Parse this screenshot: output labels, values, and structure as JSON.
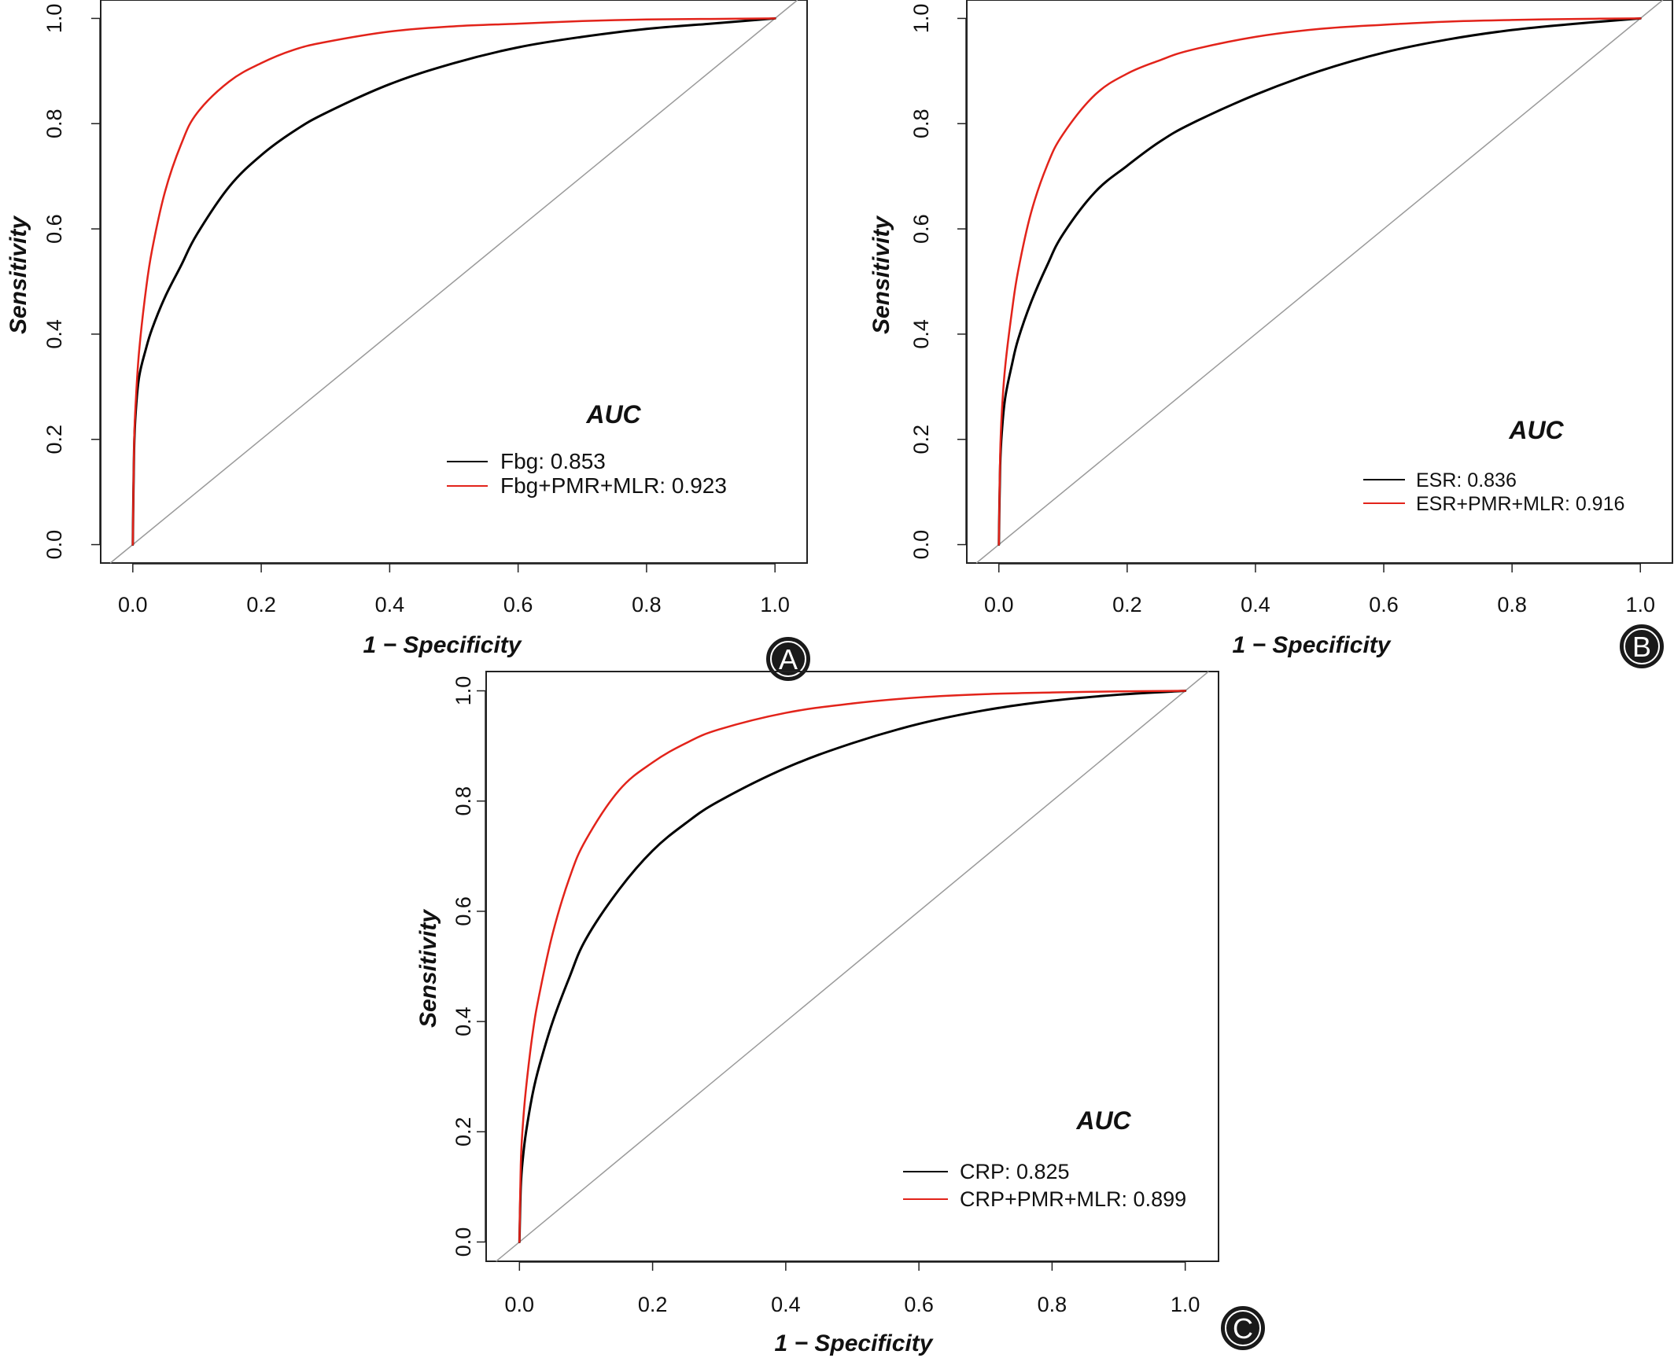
{
  "colors": {
    "reference_line": "#9a9a9a",
    "axis": "#222222",
    "badge_fill": "#1a1a1a",
    "badge_ring": "#ffffff",
    "badge_outline": "#1a1a1a"
  },
  "chart_data": [
    {
      "type": "line",
      "panel_label": "A",
      "xlabel": "1 − Specificity",
      "ylabel": "Sensitivity",
      "xlim": [
        -0.05,
        1.05
      ],
      "ylim": [
        -0.035,
        1.035
      ],
      "xticks": [
        0.0,
        0.2,
        0.4,
        0.6,
        0.8,
        1.0
      ],
      "yticks": [
        0.0,
        0.2,
        0.4,
        0.6,
        0.8,
        1.0
      ],
      "xtick_labels": [
        "0.0",
        "0.2",
        "0.4",
        "0.6",
        "0.8",
        "1.0"
      ],
      "ytick_labels": [
        "0.0",
        "0.2",
        "0.4",
        "0.6",
        "0.8",
        "1.0"
      ],
      "grid": false,
      "reference_line": "diagonal",
      "legend_title": "AUC",
      "legend_position": "bottom-right",
      "series": [
        {
          "name": "Fbg: 0.853",
          "color": "#000000",
          "x": [
            0,
            0.002,
            0.005,
            0.01,
            0.02,
            0.03,
            0.05,
            0.075,
            0.1,
            0.15,
            0.2,
            0.25,
            0.3,
            0.4,
            0.5,
            0.6,
            0.7,
            0.8,
            0.9,
            1.0
          ],
          "y": [
            0,
            0.18,
            0.26,
            0.32,
            0.37,
            0.41,
            0.47,
            0.53,
            0.59,
            0.68,
            0.74,
            0.785,
            0.82,
            0.875,
            0.915,
            0.945,
            0.965,
            0.98,
            0.99,
            1.0
          ]
        },
        {
          "name": "Fbg+PMR+MLR: 0.923",
          "color": "#e2231a",
          "x": [
            0,
            0.002,
            0.005,
            0.01,
            0.02,
            0.03,
            0.05,
            0.075,
            0.1,
            0.15,
            0.2,
            0.25,
            0.3,
            0.4,
            0.5,
            0.6,
            0.7,
            0.8,
            0.9,
            1.0
          ],
          "y": [
            0,
            0.19,
            0.28,
            0.37,
            0.48,
            0.56,
            0.67,
            0.76,
            0.82,
            0.88,
            0.915,
            0.94,
            0.955,
            0.975,
            0.985,
            0.99,
            0.995,
            0.998,
            0.999,
            1.0
          ]
        }
      ]
    },
    {
      "type": "line",
      "panel_label": "B",
      "xlabel": "1 − Specificity",
      "ylabel": "Sensitivity",
      "xlim": [
        -0.05,
        1.05
      ],
      "ylim": [
        -0.035,
        1.035
      ],
      "xticks": [
        0.0,
        0.2,
        0.4,
        0.6,
        0.8,
        1.0
      ],
      "yticks": [
        0.0,
        0.2,
        0.4,
        0.6,
        0.8,
        1.0
      ],
      "xtick_labels": [
        "0.0",
        "0.2",
        "0.4",
        "0.6",
        "0.8",
        "1.0"
      ],
      "ytick_labels": [
        "0.0",
        "0.2",
        "0.4",
        "0.6",
        "0.8",
        "1.0"
      ],
      "grid": false,
      "reference_line": "diagonal",
      "legend_title": "AUC",
      "legend_position": "bottom-right",
      "series": [
        {
          "name": "ESR: 0.836",
          "color": "#000000",
          "x": [
            0,
            0.002,
            0.005,
            0.01,
            0.02,
            0.03,
            0.05,
            0.075,
            0.1,
            0.15,
            0.2,
            0.25,
            0.3,
            0.4,
            0.5,
            0.6,
            0.7,
            0.8,
            0.9,
            1.0
          ],
          "y": [
            0,
            0.15,
            0.22,
            0.28,
            0.34,
            0.39,
            0.46,
            0.53,
            0.59,
            0.67,
            0.72,
            0.765,
            0.8,
            0.855,
            0.9,
            0.935,
            0.96,
            0.978,
            0.99,
            1.0
          ]
        },
        {
          "name": "ESR+PMR+MLR: 0.916",
          "color": "#e2231a",
          "x": [
            0,
            0.002,
            0.005,
            0.01,
            0.02,
            0.03,
            0.05,
            0.075,
            0.1,
            0.15,
            0.2,
            0.25,
            0.3,
            0.4,
            0.5,
            0.6,
            0.7,
            0.8,
            0.9,
            1.0
          ],
          "y": [
            0,
            0.17,
            0.26,
            0.34,
            0.44,
            0.52,
            0.63,
            0.72,
            0.78,
            0.855,
            0.895,
            0.92,
            0.94,
            0.965,
            0.98,
            0.988,
            0.994,
            0.997,
            0.999,
            1.0
          ]
        }
      ]
    },
    {
      "type": "line",
      "panel_label": "C",
      "xlabel": "1 − Specificity",
      "ylabel": "Sensitivity",
      "xlim": [
        -0.05,
        1.05
      ],
      "ylim": [
        -0.035,
        1.035
      ],
      "xticks": [
        0.0,
        0.2,
        0.4,
        0.6,
        0.8,
        1.0
      ],
      "yticks": [
        0.0,
        0.2,
        0.4,
        0.6,
        0.8,
        1.0
      ],
      "xtick_labels": [
        "0.0",
        "0.2",
        "0.4",
        "0.6",
        "0.8",
        "1.0"
      ],
      "ytick_labels": [
        "0.0",
        "0.2",
        "0.4",
        "0.6",
        "0.8",
        "1.0"
      ],
      "grid": false,
      "reference_line": "diagonal",
      "legend_title": "AUC",
      "legend_position": "bottom-right",
      "series": [
        {
          "name": "CRP: 0.825",
          "color": "#000000",
          "x": [
            0,
            0.002,
            0.005,
            0.01,
            0.02,
            0.03,
            0.05,
            0.075,
            0.1,
            0.15,
            0.2,
            0.25,
            0.3,
            0.4,
            0.5,
            0.6,
            0.7,
            0.8,
            0.9,
            1.0
          ],
          "y": [
            0,
            0.1,
            0.15,
            0.2,
            0.27,
            0.32,
            0.4,
            0.48,
            0.55,
            0.64,
            0.71,
            0.76,
            0.8,
            0.86,
            0.905,
            0.94,
            0.965,
            0.982,
            0.993,
            1.0
          ]
        },
        {
          "name": "CRP+PMR+MLR: 0.899",
          "color": "#e2231a",
          "x": [
            0,
            0.002,
            0.005,
            0.01,
            0.02,
            0.03,
            0.05,
            0.075,
            0.1,
            0.15,
            0.2,
            0.25,
            0.3,
            0.4,
            0.5,
            0.6,
            0.7,
            0.8,
            0.9,
            1.0
          ],
          "y": [
            0,
            0.14,
            0.21,
            0.28,
            0.38,
            0.45,
            0.56,
            0.66,
            0.73,
            0.82,
            0.87,
            0.905,
            0.93,
            0.96,
            0.977,
            0.988,
            0.994,
            0.997,
            0.999,
            1.0
          ]
        }
      ]
    }
  ]
}
